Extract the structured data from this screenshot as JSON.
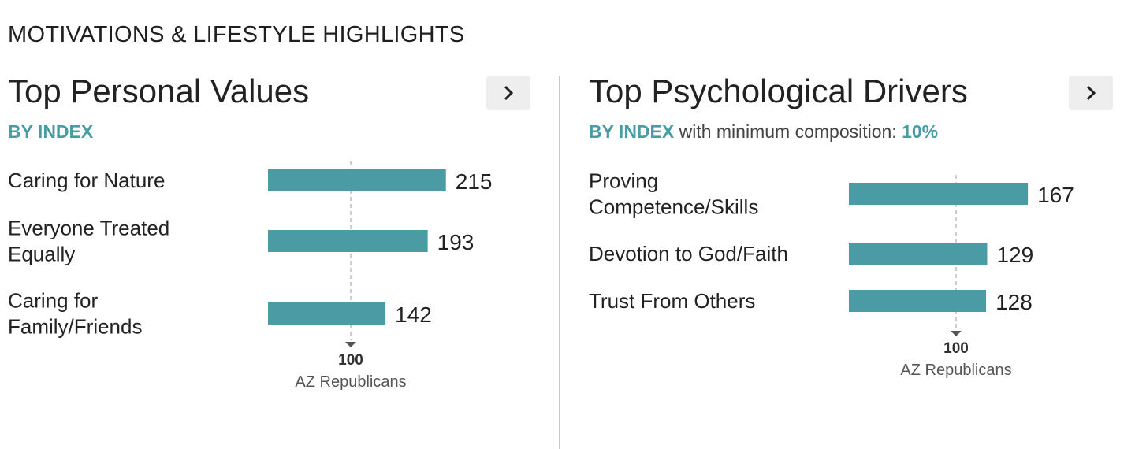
{
  "header": {
    "title": "MOTIVATIONS & LIFESTYLE HIGHLIGHTS"
  },
  "colors": {
    "accent": "#4a9ba4",
    "bar": "#4a9ba4"
  },
  "panels": [
    {
      "title": "Top Personal Values",
      "subtitle_accent": "BY INDEX",
      "subtitle_rest": "",
      "subtitle_value": "",
      "next_icon": "chevron-right-icon"
    },
    {
      "title": "Top Psychological Drivers",
      "subtitle_accent": "BY INDEX",
      "subtitle_rest": "with minimum composition:",
      "subtitle_value": "10%",
      "next_icon": "chevron-right-icon"
    }
  ],
  "chart_data": [
    {
      "type": "bar",
      "orientation": "horizontal",
      "categories": [
        [
          "Caring for Nature"
        ],
        [
          "Everyone Treated",
          "Equally"
        ],
        [
          "Caring for",
          "Family/Friends"
        ]
      ],
      "values": [
        215,
        193,
        142
      ],
      "reference": {
        "value": 100,
        "value_label": "100",
        "label": "AZ Republicans"
      },
      "xlim": [
        0,
        240
      ]
    },
    {
      "type": "bar",
      "orientation": "horizontal",
      "categories": [
        [
          "Proving",
          "Competence/Skills"
        ],
        [
          "Devotion to God/Faith"
        ],
        [
          "Trust From Others"
        ]
      ],
      "values": [
        167,
        129,
        128
      ],
      "reference": {
        "value": 100,
        "value_label": "100",
        "label": "AZ Republicans"
      },
      "xlim": [
        0,
        200
      ]
    }
  ]
}
